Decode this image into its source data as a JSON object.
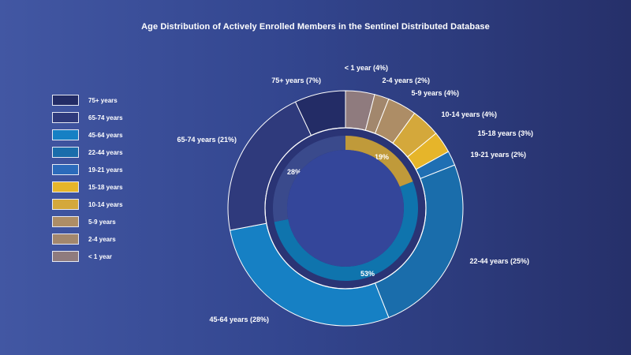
{
  "title": "Age Distribution of Actively Enrolled Members in the Sentinel Distributed Database",
  "chart_data": [
    {
      "type": "pie",
      "ring": "outer",
      "categories": [
        "< 1 year",
        "2-4 years",
        "5-9 years",
        "10-14 years",
        "15-18 years",
        "19-21 years",
        "22-44 years",
        "45-64 years",
        "65-74 years",
        "75+ years"
      ],
      "values": [
        4,
        2,
        4,
        4,
        3,
        2,
        25,
        28,
        21,
        7
      ],
      "labels": [
        "< 1 year (4%)",
        "2-4 years (2%)",
        "5-9 years (4%)",
        "10-14 years (4%)",
        "15-18 years (3%)",
        "19-21 years (2%)",
        "22-44 years (25%)",
        "45-64 years (28%)",
        "65-74 years (21%)",
        "75+ years (7%)"
      ],
      "colors": [
        "#8f7b7e",
        "#a2876d",
        "#ad8d66",
        "#d4a83b",
        "#e6b52a",
        "#1f6fb3",
        "#1a6dab",
        "#1680c4",
        "#2f3a7c",
        "#232c66"
      ]
    },
    {
      "type": "pie",
      "ring": "inner",
      "values": [
        19,
        53,
        28
      ],
      "labels": [
        "19%",
        "53%",
        "28%"
      ],
      "colors": [
        "#c09a3a",
        "#0f74ad",
        "#3a4a8c"
      ]
    }
  ],
  "legend": [
    {
      "label": "75+ years",
      "color": "#232c66"
    },
    {
      "label": "65-74 years",
      "color": "#2f3a7c"
    },
    {
      "label": "45-64 years",
      "color": "#1680c4"
    },
    {
      "label": "22-44 years",
      "color": "#1a6dab"
    },
    {
      "label": "19-21 years",
      "color": "#2b6bbb"
    },
    {
      "label": "15-18 years",
      "color": "#e6b52a"
    },
    {
      "label": "10-14 years",
      "color": "#d4a83b"
    },
    {
      "label": "5-9 years",
      "color": "#ad8d66"
    },
    {
      "label": "2-4 years",
      "color": "#a2876d"
    },
    {
      "label": "< 1 year",
      "color": "#8f7b7e"
    }
  ]
}
